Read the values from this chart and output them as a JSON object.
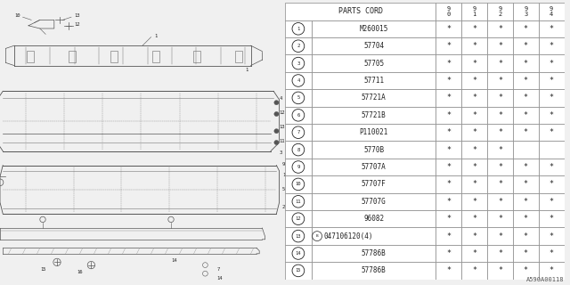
{
  "diagram_label": "A590A00118",
  "table_header_text": "PARTS CORD",
  "year_cols": [
    "9\n0",
    "9\n1",
    "9\n2",
    "9\n3",
    "9\n4"
  ],
  "rows": [
    [
      "1",
      "M260015",
      "*",
      "*",
      "*",
      "*",
      "*"
    ],
    [
      "2",
      "57704",
      "*",
      "*",
      "*",
      "*",
      "*"
    ],
    [
      "3",
      "57705",
      "*",
      "*",
      "*",
      "*",
      "*"
    ],
    [
      "4",
      "57711",
      "*",
      "*",
      "*",
      "*",
      "*"
    ],
    [
      "5",
      "57721A",
      "*",
      "*",
      "*",
      "*",
      "*"
    ],
    [
      "6",
      "57721B",
      "*",
      "*",
      "*",
      "*",
      "*"
    ],
    [
      "7",
      "P110021",
      "*",
      "*",
      "*",
      "*",
      "*"
    ],
    [
      "8",
      "5770B",
      "*",
      "*",
      "*",
      "",
      ""
    ],
    [
      "9",
      "57707A",
      "*",
      "*",
      "*",
      "*",
      "*"
    ],
    [
      "10",
      "57707F",
      "*",
      "*",
      "*",
      "*",
      "*"
    ],
    [
      "11",
      "57707G",
      "*",
      "*",
      "*",
      "*",
      "*"
    ],
    [
      "12",
      "96082",
      "*",
      "*",
      "*",
      "*",
      "*"
    ],
    [
      "13",
      "047106120(4)",
      "*",
      "*",
      "*",
      "*",
      "*"
    ],
    [
      "14",
      "57786B",
      "*",
      "*",
      "*",
      "*",
      "*"
    ],
    [
      "15",
      "57786B",
      "*",
      "*",
      "*",
      "*",
      "*"
    ]
  ],
  "bg_color": "#f0f0f0",
  "line_color": "#555555",
  "text_color": "#222222",
  "table_border": "#888888"
}
